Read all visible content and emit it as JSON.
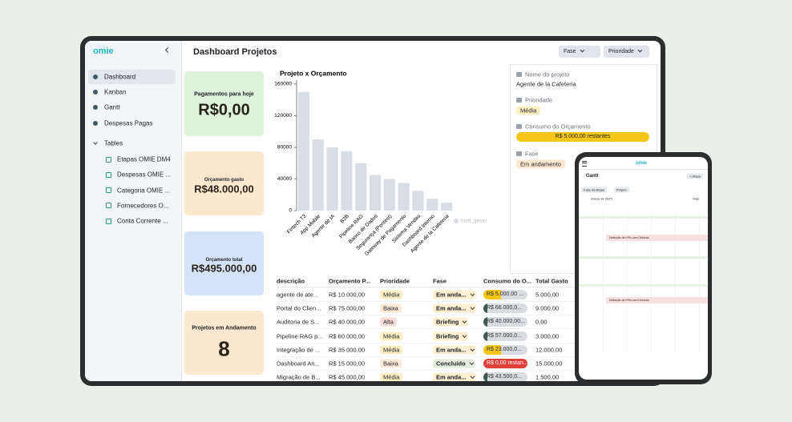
{
  "sidebar": {
    "logo": "omie",
    "nav": [
      "Dashboard",
      "Kanban",
      "Gantt",
      "Despesas Pagas"
    ],
    "section": "Tables",
    "tables": [
      "Etapas OMIE DM4",
      "Despesas OMIE ...",
      "Categoria OMIE ...",
      "Fornecedores O...",
      "Conta Corrente ..."
    ]
  },
  "header": {
    "title": "Dashboard Projetos",
    "filters": [
      "Fase",
      "Prioridade"
    ]
  },
  "cards": [
    {
      "label": "Pagamentos para hoje",
      "value": "R$0,00",
      "color": "#dff3dc"
    },
    {
      "label": "Orçamento gasto",
      "value": "R$48.000,00",
      "color": "#fde8cf"
    },
    {
      "label": "Orçamento total",
      "value": "R$495.000,00",
      "color": "#d5e3fa"
    },
    {
      "label": "Projetos em Andamento",
      "value": "8",
      "color": "#fde8cf"
    }
  ],
  "chart": {
    "type": "bar",
    "title": "Projeto x Orçamento",
    "categories": [
      "Fintech T3",
      "App Mobile",
      "Agente de IA",
      "B2B",
      "Pipeline RAG",
      "Banco de Dados",
      "Segurança (Pentest)",
      "Gateway de Pagamento",
      "Sistema Vendas",
      "Dashboard Interno",
      "Agente de la Cafeteria"
    ],
    "values": [
      150000,
      90000,
      80000,
      75000,
      60000,
      45000,
      40000,
      35000,
      25000,
      15000,
      10000
    ],
    "ylim": [
      0,
      165000
    ],
    "yticks": [
      0,
      40000,
      80000,
      120000,
      160000
    ],
    "color": "#d9dde4",
    "legend": "total_gasto"
  },
  "detail": {
    "fields": [
      {
        "label": "Nome do projeto",
        "value": "Agente de la Cafeteria"
      },
      {
        "label": "Prioridade",
        "value": "Média"
      },
      {
        "label": "Consumo do Orçamento",
        "value": "R$ 5.000,00 restantes"
      },
      {
        "label": "Fase",
        "value": "Em andamento"
      }
    ]
  },
  "table": {
    "columns": [
      "descrição",
      "Orçamento P...",
      "Prioridade",
      "Fase",
      "Consumo do O...",
      "Total Gasto"
    ],
    "rows": [
      [
        "agente de ate...",
        "R$ 10.000,00",
        {
          "text": "Média",
          "color": "#fdf0c4"
        },
        {
          "text": "Em anda...",
          "color": "#fdefd2"
        },
        {
          "text": "R$ 5.000,00 ...",
          "color": "#f5c518"
        },
        "5.000,00"
      ],
      [
        "Portal do Clien...",
        "R$ 75.000,00",
        {
          "text": "Baixa",
          "color": "#fde9d6"
        },
        {
          "text": "Em anda...",
          "color": "#fdefd2"
        },
        {
          "text": "R$ 66.000,0...",
          "color": "#3e5c52"
        },
        "9.000,00"
      ],
      [
        "Auditoria de S...",
        "R$ 40.000,00",
        {
          "text": "Alta",
          "color": "#fbdcd8"
        },
        {
          "text": "Briefing",
          "color": "#fdefd2"
        },
        {
          "text": "R$ 40.000,00...",
          "color": "#3e5c52"
        },
        "0,00"
      ],
      [
        "Pipeline RAG p...",
        "R$ 60.000,00",
        {
          "text": "Média",
          "color": "#fdf0c4"
        },
        {
          "text": "Briefing",
          "color": "#fdefd2"
        },
        {
          "text": "R$ 57.000,0...",
          "color": "#3e5c52"
        },
        "3.000,00"
      ],
      [
        "Integração de ...",
        "R$ 35.000,00",
        {
          "text": "Média",
          "color": "#fdf0c4"
        },
        {
          "text": "Em anda...",
          "color": "#fdefd2"
        },
        {
          "text": "R$ 23.000,0...",
          "color": "#f5c518"
        },
        "12.000,00"
      ],
      [
        "Dashboard An...",
        "R$ 15.000,00",
        {
          "text": "Baixa",
          "color": "#fde9d6"
        },
        {
          "text": "Concluído",
          "color": "#e1ecdc"
        },
        {
          "text": "R$ 0,00 restan...",
          "color": "#e0403a"
        },
        "15.000,00"
      ],
      [
        "Migração de B...",
        "R$ 45.000,00",
        {
          "text": "Média",
          "color": "#fdf0c4"
        },
        {
          "text": "Em anda...",
          "color": "#fdefd2"
        },
        {
          "text": "R$ 43.500,0...",
          "color": "#3e5c52"
        },
        "1.500,00"
      ]
    ]
  },
  "tablet": {
    "logo": "omie",
    "title": "Gantt",
    "button": "+ Etapa",
    "filters": [
      "Fase da Etapa",
      "Projeto"
    ],
    "month": "março de 2025",
    "today": "Hoje",
    "tasks": [
      "Definição de KPIs com Diretoria",
      "Definição de KPIs com Diretoria"
    ]
  }
}
